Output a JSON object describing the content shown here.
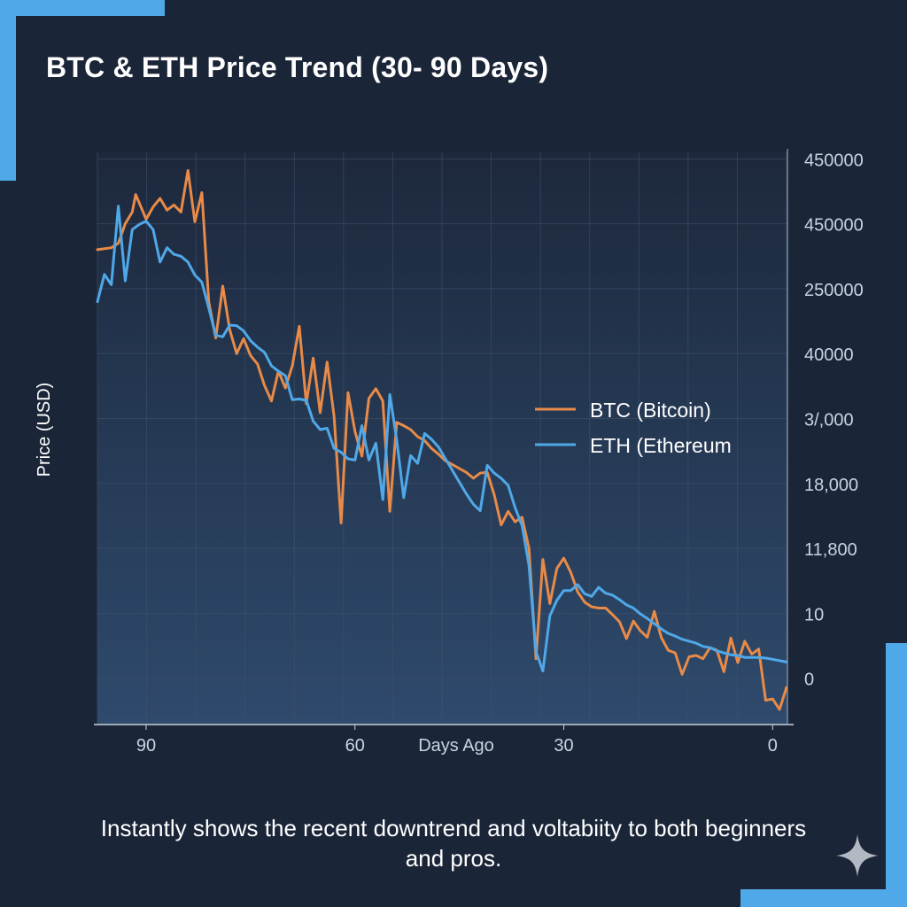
{
  "chart_data": {
    "type": "line",
    "title": "BTC & ETH Price Trend (30- 90 Days)",
    "xlabel": "Days Ago",
    "ylabel": "Price (USD)",
    "x_ticks": [
      {
        "label": "90",
        "value": 90
      },
      {
        "label": "60",
        "value": 60
      },
      {
        "label": "30",
        "value": 30
      },
      {
        "label": "0",
        "value": 0
      }
    ],
    "xlim": [
      97,
      -2
    ],
    "y_ticks": [
      "450000",
      "450000",
      "250000",
      "40000",
      "3/,000",
      "18,000",
      "11,800",
      "10",
      "0"
    ],
    "y_tick_index_range": [
      8,
      0
    ],
    "ylim": [
      -0.7,
      8.1
    ],
    "grid": true,
    "legend_position": "right-center",
    "colors": {
      "btc": "#e88a48",
      "eth": "#4fa8e8"
    },
    "series": [
      {
        "name": "BTC (Bitcoin)",
        "color": "#e88a48",
        "x": [
          97,
          95,
          94,
          93,
          92,
          91.5,
          90,
          89,
          88,
          87,
          86,
          85,
          84,
          83,
          82,
          81,
          80,
          79,
          78,
          77,
          76,
          75,
          74,
          73,
          72,
          71,
          70,
          69,
          68,
          67,
          66,
          65,
          64,
          63,
          62,
          61,
          60,
          59,
          58,
          57,
          56,
          55,
          54,
          53,
          52,
          51,
          50,
          49,
          48,
          47,
          46,
          45,
          44,
          43,
          42,
          41,
          40,
          39,
          38,
          37,
          36,
          35,
          34,
          33,
          32,
          31,
          30,
          29,
          28,
          27,
          26,
          25,
          24,
          23,
          22,
          21,
          20,
          19,
          18,
          17,
          16,
          15,
          14,
          13,
          12,
          11,
          10,
          9,
          8,
          7,
          6,
          5,
          4,
          3,
          2,
          1,
          0,
          -1,
          -2
        ],
        "y": [
          6.6,
          6.63,
          6.7,
          7.0,
          7.18,
          7.45,
          7.07,
          7.26,
          7.39,
          7.21,
          7.29,
          7.18,
          7.82,
          7.03,
          7.48,
          5.8,
          5.24,
          6.04,
          5.37,
          5.0,
          5.23,
          4.97,
          4.84,
          4.51,
          4.27,
          4.73,
          4.47,
          4.81,
          5.42,
          4.23,
          4.93,
          4.09,
          4.87,
          4.03,
          2.39,
          4.4,
          3.8,
          3.42,
          4.31,
          4.46,
          4.27,
          2.57,
          3.94,
          3.89,
          3.83,
          3.72,
          3.66,
          3.54,
          3.45,
          3.35,
          3.29,
          3.23,
          3.17,
          3.08,
          3.16,
          3.17,
          2.83,
          2.36,
          2.57,
          2.41,
          2.48,
          2.0,
          0.3,
          1.83,
          1.15,
          1.69,
          1.85,
          1.63,
          1.33,
          1.17,
          1.1,
          1.08,
          1.08,
          0.98,
          0.87,
          0.61,
          0.88,
          0.73,
          0.63,
          1.03,
          0.63,
          0.43,
          0.39,
          0.06,
          0.33,
          0.35,
          0.3,
          0.47,
          0.43,
          0.1,
          0.62,
          0.24,
          0.57,
          0.37,
          0.45,
          -0.34,
          -0.32,
          -0.48,
          -0.14
        ]
      },
      {
        "name": "ETH (Ethereum",
        "color": "#4fa8e8",
        "x": [
          97,
          96,
          95,
          94,
          93,
          92,
          91,
          90,
          89,
          88,
          87,
          86,
          85,
          84,
          83,
          82,
          81,
          80,
          79,
          78,
          77,
          76,
          75,
          74,
          73,
          72,
          71,
          70,
          69,
          68,
          67,
          66,
          65,
          64,
          63,
          62,
          61,
          60,
          59,
          58,
          57,
          56,
          55,
          54,
          53,
          52,
          51,
          50,
          49,
          48,
          47,
          46,
          45,
          44,
          43,
          42,
          41,
          40,
          39,
          38,
          37,
          36,
          35,
          34,
          33,
          32,
          31,
          30,
          29,
          28,
          27,
          26,
          25,
          24,
          23,
          22,
          21,
          20,
          19,
          18,
          17,
          16,
          15,
          14,
          13,
          12,
          11,
          10,
          9,
          8,
          7,
          6,
          5,
          4,
          3,
          2,
          1,
          0,
          -1,
          -2
        ],
        "y": [
          5.8,
          6.22,
          6.06,
          7.27,
          6.12,
          6.91,
          6.99,
          7.04,
          6.91,
          6.41,
          6.63,
          6.53,
          6.5,
          6.41,
          6.21,
          6.1,
          5.7,
          5.28,
          5.26,
          5.44,
          5.43,
          5.35,
          5.2,
          5.1,
          5.02,
          4.81,
          4.73,
          4.66,
          4.29,
          4.3,
          4.28,
          3.96,
          3.83,
          3.85,
          3.54,
          3.48,
          3.38,
          3.36,
          3.89,
          3.36,
          3.62,
          2.75,
          4.37,
          3.67,
          2.78,
          3.43,
          3.31,
          3.77,
          3.68,
          3.56,
          3.38,
          3.2,
          3.02,
          2.84,
          2.68,
          2.58,
          3.28,
          3.16,
          3.08,
          2.97,
          2.63,
          2.35,
          1.74,
          0.41,
          0.11,
          0.96,
          1.2,
          1.35,
          1.35,
          1.44,
          1.3,
          1.26,
          1.4,
          1.31,
          1.28,
          1.21,
          1.13,
          1.08,
          0.99,
          0.92,
          0.84,
          0.76,
          0.69,
          0.65,
          0.6,
          0.57,
          0.54,
          0.49,
          0.47,
          0.42,
          0.39,
          0.36,
          0.35,
          0.32,
          0.32,
          0.32,
          0.31,
          0.29,
          0.27,
          0.25
        ]
      }
    ]
  },
  "caption": "Instantly shows the recent downtrend and voltabiity to both beginners and pros.",
  "icons": {
    "sparkle": "sparkle-icon"
  }
}
